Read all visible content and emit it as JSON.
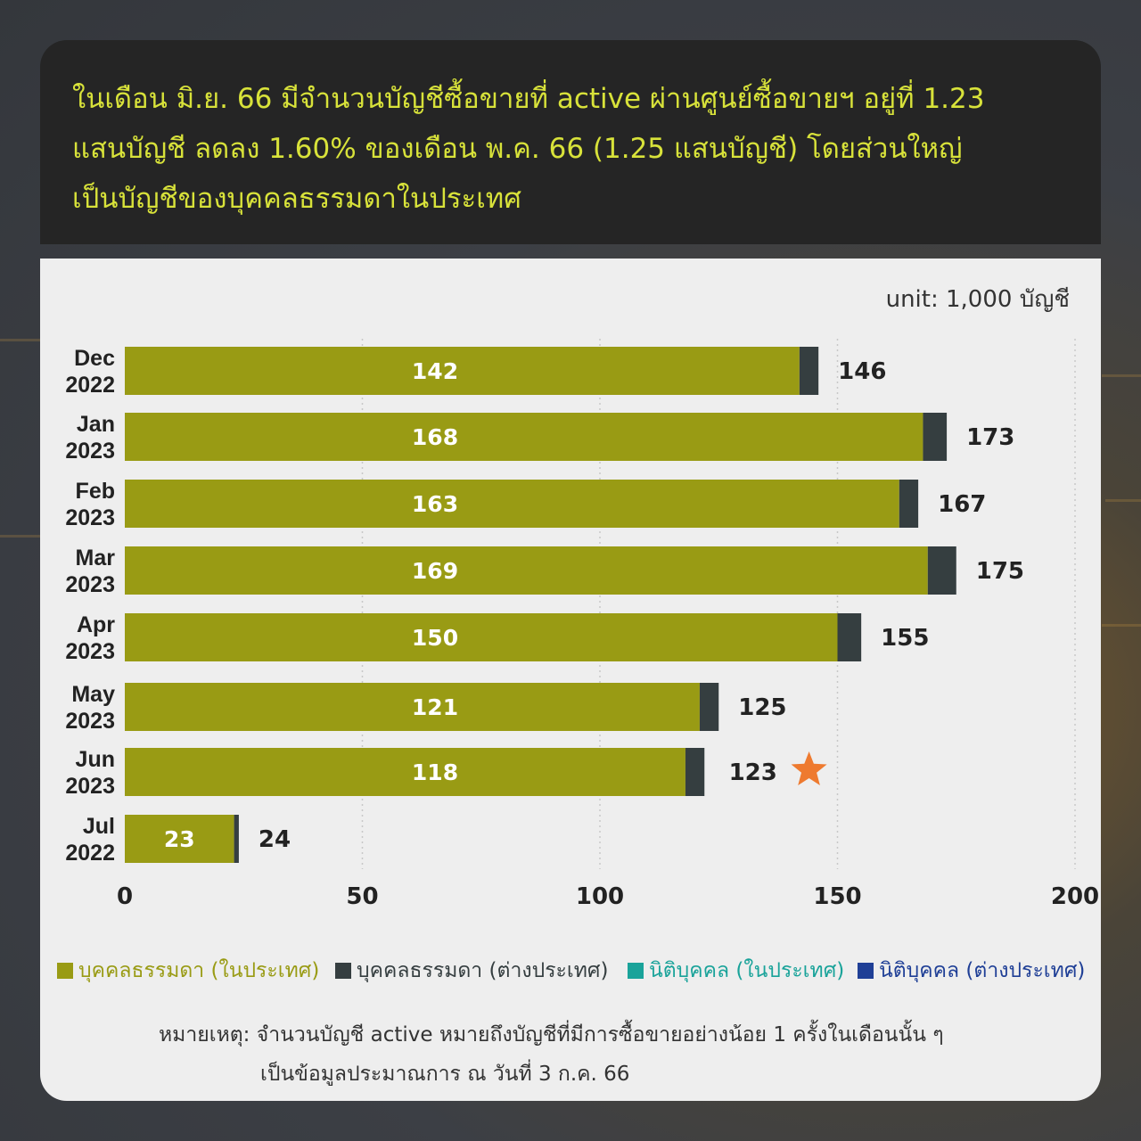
{
  "headline": "ในเดือน มิ.ย. 66 มีจำนวนบัญชีซื้อขายที่ active ผ่านศูนย์ซื้อขายฯ อยู่ที่ 1.23 แสนบัญชี ลดลง 1.60% ของเดือน พ.ค. 66 (1.25 แสนบัญชี) โดยส่วนใหญ่เป็นบัญชีของบุคคลธรรมดาในประเทศ",
  "headline_lines": [
    "ในเดือน มิ.ย. 66 มีจำนวนบัญชีซื้อขายที่ active ผ่านศูนย์ซื้อขายฯ อยู่ที่ 1.23",
    "แสนบัญชี ลดลง 1.60% ของเดือน พ.ค. 66 (1.25 แสนบัญชี) โดยส่วนใหญ่",
    "เป็นบัญชีของบุคคลธรรมดาในประเทศ"
  ],
  "unit": "unit: 1,000 บัญชี",
  "chart_data": {
    "type": "bar",
    "orientation": "horizontal",
    "stacked": true,
    "categories": [
      [
        "Dec",
        "2022"
      ],
      [
        "Jan",
        "2023"
      ],
      [
        "Feb",
        "2023"
      ],
      [
        "Mar",
        "2023"
      ],
      [
        "Apr",
        "2023"
      ],
      [
        "May",
        "2023"
      ],
      [
        "Jun",
        "2023"
      ],
      [
        "Jul",
        "2022"
      ]
    ],
    "series": [
      {
        "name": "บุคคลธรรมดา (ในประเทศ)",
        "color": "#999b14",
        "values": [
          142,
          168,
          163,
          169,
          150,
          121,
          118,
          23
        ],
        "labels": [
          "142",
          "168",
          "163",
          "169",
          "150",
          "121",
          "118",
          "23"
        ]
      },
      {
        "name": "บุคคลธรรมดา (ต่างประเทศ)",
        "color": "#353e40",
        "values": [
          4,
          5,
          4,
          6,
          5,
          4,
          4,
          1
        ]
      },
      {
        "name": "นิติบุคคล (ในประเทศ)",
        "color": "#1aa39a",
        "values": [
          0,
          0,
          0,
          0,
          0,
          0,
          0,
          0
        ]
      },
      {
        "name": "นิติบุคคล (ต่างประเทศ)",
        "color": "#1f3f96",
        "values": [
          0,
          0,
          0,
          0,
          0,
          0,
          0,
          0
        ]
      }
    ],
    "totals": [
      146,
      173,
      167,
      175,
      155,
      125,
      123,
      24
    ],
    "total_labels": [
      "146",
      "173",
      "167",
      "175",
      "155",
      "125",
      "123",
      "24"
    ],
    "highlight_category": 6,
    "highlight_color": "#ee7a2f",
    "xlim": [
      0,
      200
    ],
    "xticks": [
      0,
      50,
      100,
      150,
      200
    ],
    "xtick_labels": [
      "0",
      "50",
      "100",
      "150",
      "200"
    ],
    "grid": true,
    "legend_position": "bottom",
    "legend_label_colors": [
      "#999b14",
      "#353e40",
      "#1aa39a",
      "#1f3f96"
    ]
  },
  "note": {
    "lines": [
      "หมายเหตุ: จำนวนบัญชี active หมายถึงบัญชีที่มีการซื้อขายอย่างน้อย 1 ครั้งในเดือนนั้น ๆ",
      "เป็นข้อมูลประมาณการ ณ วันที่ 3 ก.ค. 66"
    ]
  }
}
